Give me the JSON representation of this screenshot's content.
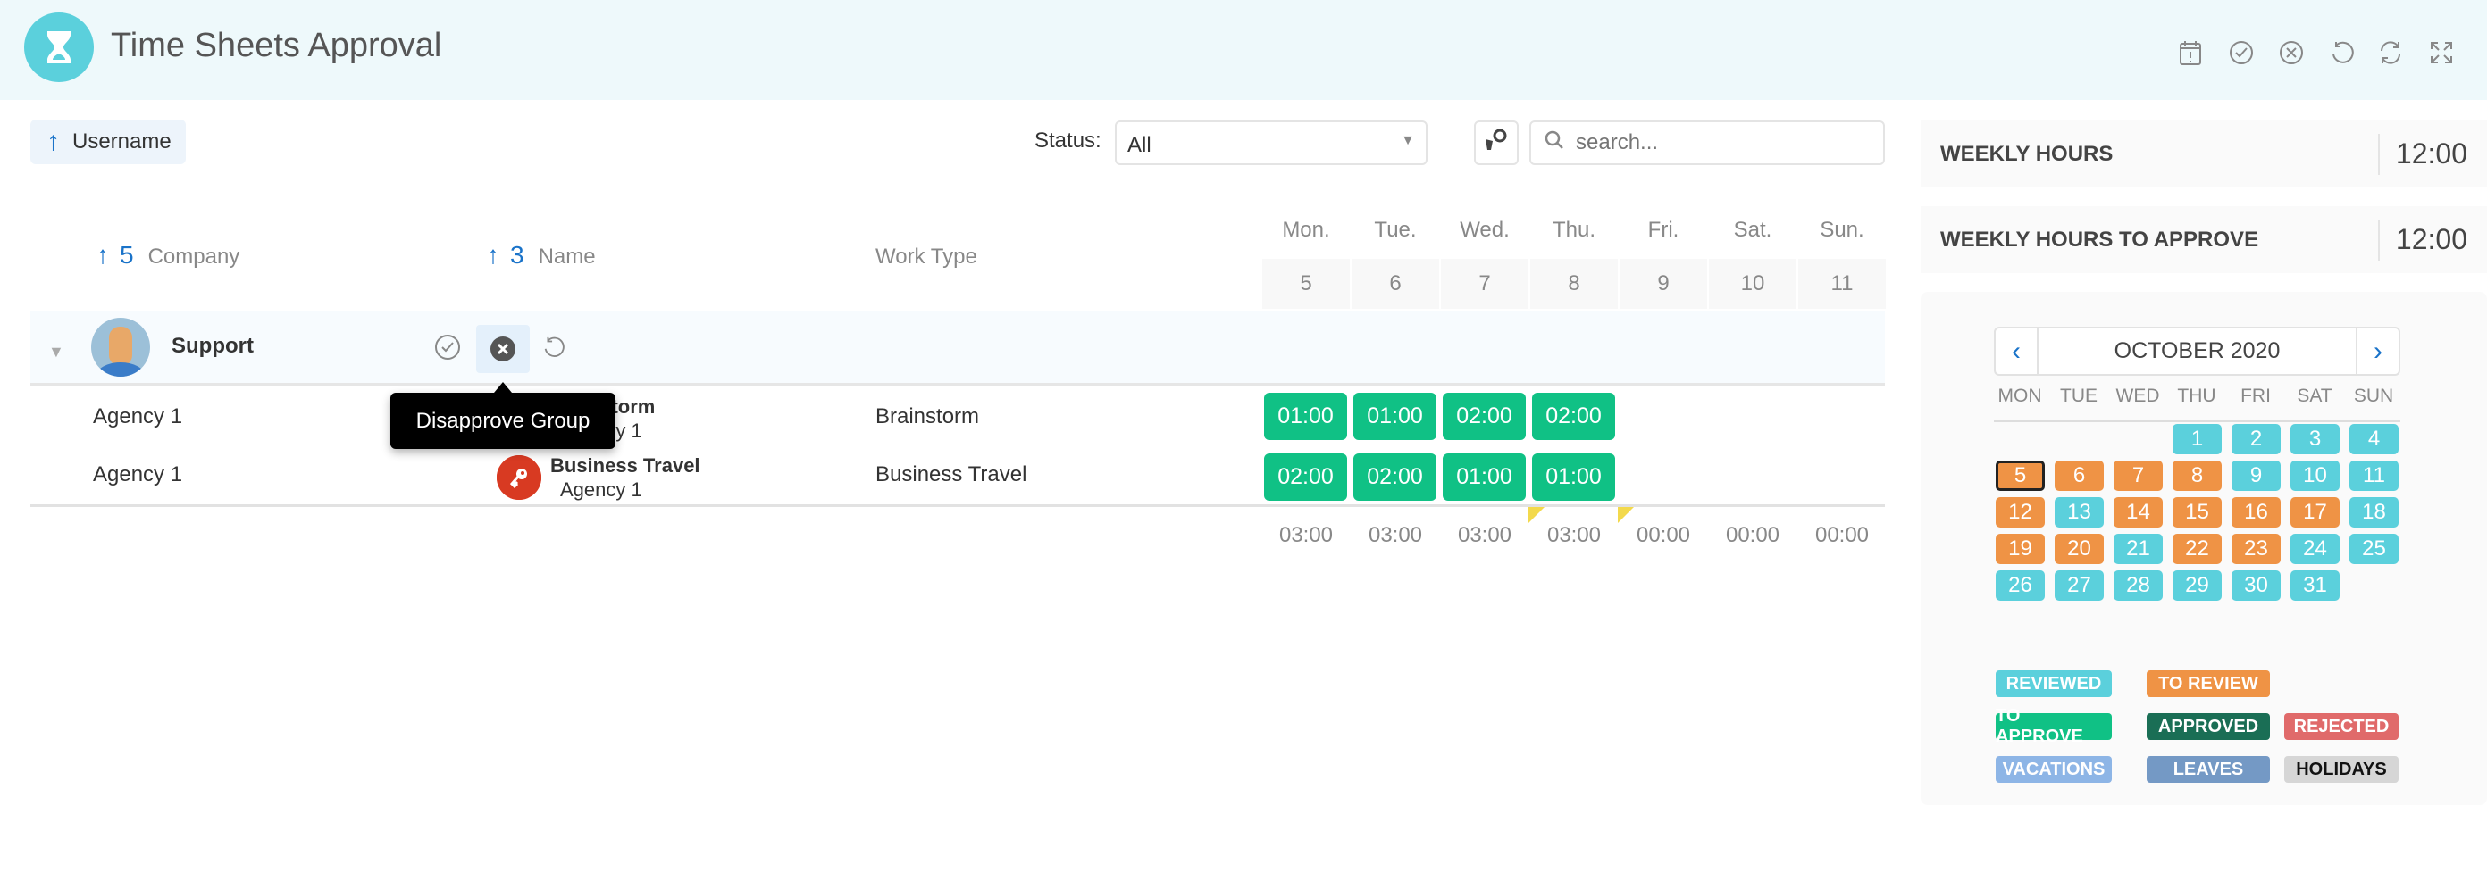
{
  "header": {
    "title": "Time Sheets Approval",
    "icons": [
      "calendar-alert-icon",
      "check-circle-icon",
      "x-circle-icon",
      "undo-icon",
      "refresh-icon",
      "fullscreen-icon"
    ]
  },
  "toolbar": {
    "sort_label": "Username",
    "status_label": "Status:",
    "status_value": "All",
    "search_placeholder": "search..."
  },
  "stats": {
    "weekly_hours_label": "WEEKLY HOURS",
    "weekly_hours": "12:00",
    "to_approve_label": "WEEKLY HOURS TO APPROVE",
    "to_approve": "12:00"
  },
  "columns": {
    "company": "Company",
    "company_sort": "5",
    "name": "Name",
    "name_sort": "3",
    "work_type": "Work Type"
  },
  "days": [
    {
      "name": "Mon.",
      "num": "5"
    },
    {
      "name": "Tue.",
      "num": "6"
    },
    {
      "name": "Wed.",
      "num": "7"
    },
    {
      "name": "Thu.",
      "num": "8"
    },
    {
      "name": "Fri.",
      "num": "9"
    },
    {
      "name": "Sat.",
      "num": "10"
    },
    {
      "name": "Sun.",
      "num": "11"
    }
  ],
  "group": {
    "name": "Support",
    "tooltip": "Disapprove Group"
  },
  "rows": [
    {
      "company": "Agency 1",
      "name": "Brainstorm",
      "sub": "Agency 1",
      "work_type": "Brainstorm",
      "hours": [
        "01:00",
        "01:00",
        "02:00",
        "02:00"
      ]
    },
    {
      "company": "Agency 1",
      "name": "Business Travel",
      "sub": "Agency 1",
      "work_type": "Business Travel",
      "hours": [
        "02:00",
        "02:00",
        "01:00",
        "01:00"
      ]
    }
  ],
  "totals": [
    "03:00",
    "03:00",
    "03:00",
    "03:00",
    "00:00",
    "00:00",
    "00:00"
  ],
  "calendar": {
    "month": "OCTOBER 2020",
    "weekdays": [
      "MON",
      "TUE",
      "WED",
      "THU",
      "FRI",
      "SAT",
      "SUN"
    ],
    "first_weekday_index": 3,
    "selected": 5,
    "statuses": [
      "reviewed",
      "reviewed",
      "reviewed",
      "reviewed",
      "review",
      "review",
      "review",
      "review",
      "reviewed",
      "reviewed",
      "reviewed",
      "review",
      "reviewed",
      "review",
      "review",
      "review",
      "review",
      "reviewed",
      "review",
      "review",
      "reviewed",
      "review",
      "review",
      "reviewed",
      "reviewed",
      "reviewed",
      "reviewed",
      "reviewed",
      "reviewed",
      "reviewed",
      "reviewed"
    ]
  },
  "colors": {
    "reviewed": "#5bd0dc",
    "review": "#ef9345",
    "to_approve": "#10c185",
    "approved": "#1a6e55",
    "rejected": "#e06a6a",
    "vacations": "#8db5e6",
    "leaves": "#7499c5",
    "holidays": "#d6d6d6"
  },
  "legend": [
    {
      "label": "REVIEWED",
      "key": "reviewed"
    },
    {
      "label": "TO REVIEW",
      "key": "review"
    },
    {
      "label": "TO APPROVE",
      "key": "to_approve"
    },
    {
      "label": "APPROVED",
      "key": "approved"
    },
    {
      "label": "REJECTED",
      "key": "rejected"
    },
    {
      "label": "VACATIONS",
      "key": "vacations"
    },
    {
      "label": "LEAVES",
      "key": "leaves"
    },
    {
      "label": "HOLIDAYS",
      "key": "holidays"
    }
  ]
}
